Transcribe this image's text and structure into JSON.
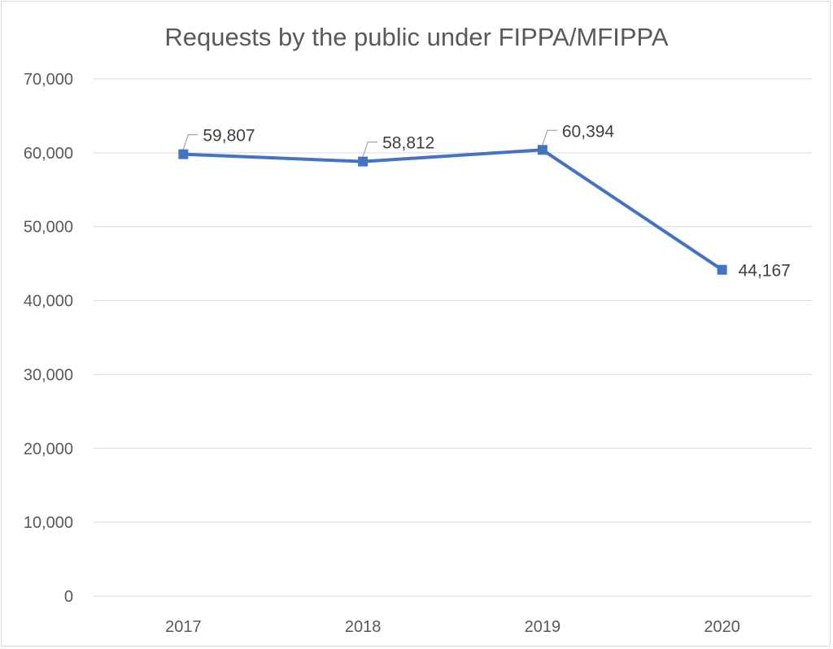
{
  "chart_data": {
    "type": "line",
    "title": "Requests by the public under FIPPA/MFIPPA",
    "categories": [
      "2017",
      "2018",
      "2019",
      "2020"
    ],
    "series": [
      {
        "values": [
          59807,
          58812,
          60394,
          44167
        ],
        "labels": [
          "59,807",
          "58,812",
          "60,394",
          "44,167"
        ],
        "color": "#4472C4",
        "marker": "square"
      }
    ],
    "ylim": [
      0,
      70000
    ],
    "yticks": [
      0,
      10000,
      20000,
      30000,
      40000,
      50000,
      60000,
      70000
    ],
    "ytick_labels": [
      "0",
      "10,000",
      "20,000",
      "30,000",
      "40,000",
      "50,000",
      "60,000",
      "70,000"
    ],
    "grid": true,
    "legend": "none",
    "colors": {
      "gridline": "#d9d9d9",
      "text": "#595959",
      "label": "#404040",
      "leader": "#a6a6a6"
    }
  }
}
